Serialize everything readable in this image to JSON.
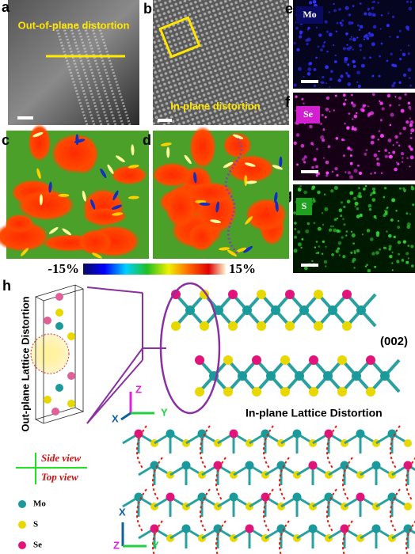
{
  "panels": {
    "a": {
      "label": "a",
      "annotation": "Out-of-plane distortion"
    },
    "b": {
      "label": "b",
      "annotation": "In-plane distortion"
    },
    "c": {
      "label": "c"
    },
    "d": {
      "label": "d"
    },
    "e": {
      "label": "e",
      "element": "Mo"
    },
    "f": {
      "label": "f",
      "element": "Se"
    },
    "g": {
      "label": "g",
      "element": "S"
    },
    "h": {
      "label": "h"
    }
  },
  "colorbar": {
    "min_label": "-15%",
    "max_label": "15%"
  },
  "structure": {
    "side_label": "Out-plane Lattice Distortion",
    "plane": "(002)",
    "top_label": "In-plane Lattice Distortion",
    "side_view": "Side view",
    "top_view": "Top view",
    "axes_side": {
      "z": "Z",
      "x": "X",
      "y": "Y"
    },
    "axes_top": {
      "x": "X",
      "z": "Z",
      "y": "Y"
    }
  },
  "legend": [
    {
      "name": "Mo"
    },
    {
      "name": "S"
    },
    {
      "name": "Se"
    }
  ]
}
